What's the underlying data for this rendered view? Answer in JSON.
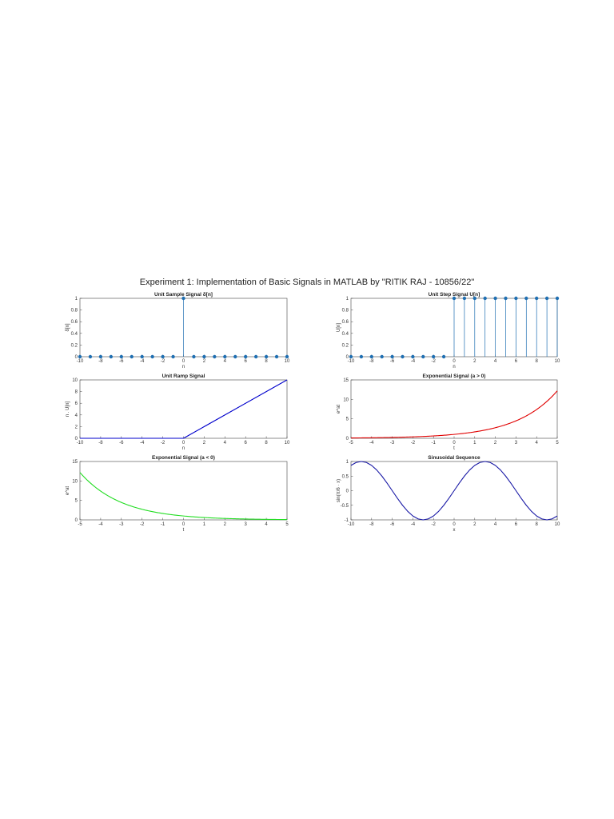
{
  "figure_title": "Experiment 1: Implementation of Basic Signals in MATLAB by \"RITIK RAJ - 10856/22\"",
  "colors": {
    "stem": "#1f6fb2",
    "ramp": "#0000cc",
    "exp_pos": "#e00000",
    "exp_neg": "#22dd22",
    "sine": "#1a1aa6",
    "axes": "#444444"
  },
  "chart_data": [
    {
      "id": "unit-sample",
      "type": "stem",
      "title": "Unit Sample Signal δ[n]",
      "xlabel": "n",
      "ylabel": "δ[n]",
      "xlim": [
        -10,
        10
      ],
      "ylim": [
        0,
        1
      ],
      "xticks": [
        -10,
        -8,
        -6,
        -4,
        -2,
        0,
        2,
        4,
        6,
        8,
        10
      ],
      "yticks": [
        0,
        0.2,
        0.4,
        0.6,
        0.8,
        1
      ],
      "x": [
        -10,
        -9,
        -8,
        -7,
        -6,
        -5,
        -4,
        -3,
        -2,
        -1,
        0,
        1,
        2,
        3,
        4,
        5,
        6,
        7,
        8,
        9,
        10
      ],
      "y": [
        0,
        0,
        0,
        0,
        0,
        0,
        0,
        0,
        0,
        0,
        1,
        0,
        0,
        0,
        0,
        0,
        0,
        0,
        0,
        0,
        0
      ]
    },
    {
      "id": "unit-step",
      "type": "stem",
      "title": "Unit Step Signal U[n]",
      "xlabel": "n",
      "ylabel": "U[n]",
      "xlim": [
        -10,
        10
      ],
      "ylim": [
        0,
        1
      ],
      "xticks": [
        -10,
        -8,
        -6,
        -4,
        -2,
        0,
        2,
        4,
        6,
        8,
        10
      ],
      "yticks": [
        0,
        0.2,
        0.4,
        0.6,
        0.8,
        1
      ],
      "x": [
        -10,
        -9,
        -8,
        -7,
        -6,
        -5,
        -4,
        -3,
        -2,
        -1,
        0,
        1,
        2,
        3,
        4,
        5,
        6,
        7,
        8,
        9,
        10
      ],
      "y": [
        0,
        0,
        0,
        0,
        0,
        0,
        0,
        0,
        0,
        0,
        1,
        1,
        1,
        1,
        1,
        1,
        1,
        1,
        1,
        1,
        1
      ]
    },
    {
      "id": "unit-ramp",
      "type": "line",
      "title": "Unit Ramp Signal",
      "xlabel": "n",
      "ylabel": "n . U[n]",
      "xlim": [
        -10,
        10
      ],
      "ylim": [
        0,
        10
      ],
      "xticks": [
        -10,
        -8,
        -6,
        -4,
        -2,
        0,
        2,
        4,
        6,
        8,
        10
      ],
      "yticks": [
        0,
        2,
        4,
        6,
        8,
        10
      ],
      "x": [
        -10,
        0,
        10
      ],
      "y": [
        0,
        0,
        10
      ],
      "color_key": "ramp"
    },
    {
      "id": "exp-positive",
      "type": "line",
      "title": "Exponential Signal (a > 0)",
      "xlabel": "t",
      "ylabel": "e^at",
      "xlim": [
        -5,
        5
      ],
      "ylim": [
        0,
        15
      ],
      "xticks": [
        -5,
        -4,
        -3,
        -2,
        -1,
        0,
        1,
        2,
        3,
        4,
        5
      ],
      "yticks": [
        0,
        5,
        10,
        15
      ],
      "x": [
        -5,
        -4,
        -3,
        -2,
        -1,
        0,
        1,
        2,
        3,
        4,
        5
      ],
      "y": [
        0.08,
        0.13,
        0.22,
        0.37,
        0.61,
        1.0,
        1.65,
        2.72,
        4.48,
        7.39,
        12.18
      ],
      "color_key": "exp_pos"
    },
    {
      "id": "exp-negative",
      "type": "line",
      "title": "Exponential Signal (a < 0)",
      "xlabel": "t",
      "ylabel": "e^at",
      "xlim": [
        -5,
        5
      ],
      "ylim": [
        0,
        15
      ],
      "xticks": [
        -5,
        -4,
        -3,
        -2,
        -1,
        0,
        1,
        2,
        3,
        4,
        5
      ],
      "yticks": [
        0,
        5,
        10,
        15
      ],
      "x": [
        -5,
        -4,
        -3,
        -2,
        -1,
        0,
        1,
        2,
        3,
        4,
        5
      ],
      "y": [
        12.18,
        7.39,
        4.48,
        2.72,
        1.65,
        1.0,
        0.61,
        0.37,
        0.22,
        0.13,
        0.08
      ],
      "color_key": "exp_neg"
    },
    {
      "id": "sinusoid",
      "type": "line",
      "title": "Sinusoidal Sequence",
      "xlabel": "x",
      "ylabel": "sin(π/6 · x)",
      "xlim": [
        -10,
        10
      ],
      "ylim": [
        -1,
        1
      ],
      "xticks": [
        -10,
        -8,
        -6,
        -4,
        -2,
        0,
        2,
        4,
        6,
        8,
        10
      ],
      "yticks": [
        -1,
        -0.5,
        0,
        0.5,
        1
      ],
      "x": [
        -10,
        -9.5,
        -9,
        -8.5,
        -8,
        -7.5,
        -7,
        -6.5,
        -6,
        -5.5,
        -5,
        -4.5,
        -4,
        -3.5,
        -3,
        -2.5,
        -2,
        -1.5,
        -1,
        -0.5,
        0,
        0.5,
        1,
        1.5,
        2,
        2.5,
        3,
        3.5,
        4,
        4.5,
        5,
        5.5,
        6,
        6.5,
        7,
        7.5,
        8,
        8.5,
        9,
        9.5,
        10
      ],
      "y": [
        0.866,
        0.966,
        1.0,
        0.966,
        0.866,
        0.707,
        0.5,
        0.259,
        0,
        -0.259,
        -0.5,
        -0.707,
        -0.866,
        -0.966,
        -1.0,
        -0.966,
        -0.866,
        -0.707,
        -0.5,
        -0.259,
        0,
        0.259,
        0.5,
        0.707,
        0.866,
        0.966,
        1.0,
        0.966,
        0.866,
        0.707,
        0.5,
        0.259,
        0,
        -0.259,
        -0.5,
        -0.707,
        -0.866,
        -0.966,
        -1.0,
        -0.966,
        -0.866
      ],
      "color_key": "sine"
    }
  ]
}
